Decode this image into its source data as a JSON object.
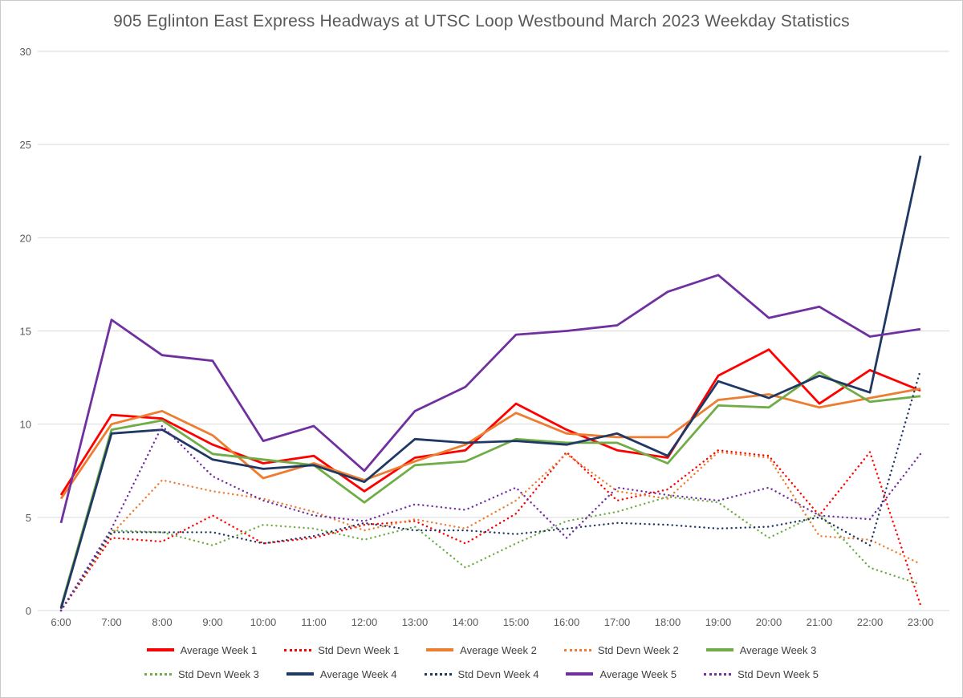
{
  "chart_data": {
    "type": "line",
    "title": "905 Eglinton East Express Headways at UTSC Loop Westbound March 2023 Weekday Statistics",
    "xlabel": "",
    "ylabel": "",
    "ylim": [
      0,
      30
    ],
    "yticks": [
      0,
      5,
      10,
      15,
      20,
      25,
      30
    ],
    "grid": "horizontal",
    "legend_position": "bottom",
    "x_labels": [
      "6:00",
      "7:00",
      "8:00",
      "9:00",
      "10:00",
      "11:00",
      "12:00",
      "13:00",
      "14:00",
      "15:00",
      "16:00",
      "17:00",
      "18:00",
      "19:00",
      "20:00",
      "21:00",
      "22:00",
      "23:00"
    ],
    "series": [
      {
        "name": "Average Week 1",
        "color": "#FF0000",
        "style": "solid",
        "values": [
          6.2,
          10.5,
          10.3,
          8.9,
          7.9,
          8.3,
          6.4,
          8.2,
          8.6,
          11.1,
          9.7,
          8.6,
          8.2,
          12.6,
          14.0,
          11.1,
          12.9,
          11.8
        ]
      },
      {
        "name": "Std Devn Week 1",
        "color": "#FF0000",
        "style": "dotted",
        "values": [
          0,
          3.9,
          3.7,
          5.1,
          3.6,
          3.9,
          4.6,
          4.8,
          3.6,
          5.2,
          8.5,
          5.9,
          6.5,
          8.6,
          8.3,
          5.1,
          8.5,
          0.3
        ]
      },
      {
        "name": "Average Week 2",
        "color": "#ED7D31",
        "style": "solid",
        "values": [
          6.0,
          10.0,
          10.7,
          9.4,
          7.1,
          7.9,
          7.0,
          8.0,
          8.9,
          10.6,
          9.5,
          9.3,
          9.3,
          11.3,
          11.6,
          10.9,
          11.4,
          11.9
        ]
      },
      {
        "name": "Std Devn Week 2",
        "color": "#ED7D31",
        "style": "dotted",
        "values": [
          0,
          4.1,
          7.0,
          6.4,
          6.0,
          5.3,
          4.3,
          4.9,
          4.4,
          5.9,
          8.4,
          6.4,
          6.0,
          8.5,
          8.2,
          4.0,
          3.8,
          2.5
        ]
      },
      {
        "name": "Average Week 3",
        "color": "#70AD47",
        "style": "solid",
        "values": [
          0.2,
          9.7,
          10.2,
          8.4,
          8.1,
          7.8,
          5.8,
          7.8,
          8.0,
          9.2,
          9.0,
          9.0,
          7.9,
          11.0,
          10.9,
          12.8,
          11.2,
          11.5
        ]
      },
      {
        "name": "Std Devn Week 3",
        "color": "#70AD47",
        "style": "dotted",
        "values": [
          0,
          4.3,
          4.2,
          3.5,
          4.6,
          4.4,
          3.8,
          4.5,
          2.3,
          3.6,
          4.8,
          5.3,
          6.1,
          5.8,
          3.9,
          5.2,
          2.3,
          1.4
        ]
      },
      {
        "name": "Average Week 4",
        "color": "#1F3864",
        "style": "solid",
        "values": [
          0.1,
          9.5,
          9.7,
          8.1,
          7.6,
          7.8,
          6.9,
          9.2,
          9.0,
          9.1,
          8.9,
          9.5,
          8.3,
          12.3,
          11.4,
          12.6,
          11.7,
          24.4
        ]
      },
      {
        "name": "Std Devn Week 4",
        "color": "#1F3864",
        "style": "dotted",
        "values": [
          0,
          4.2,
          4.2,
          4.2,
          3.6,
          4.0,
          4.7,
          4.3,
          4.3,
          4.1,
          4.4,
          4.7,
          4.6,
          4.4,
          4.5,
          5.0,
          3.5,
          12.9
        ]
      },
      {
        "name": "Average Week 5",
        "color": "#7030A0",
        "style": "solid",
        "values": [
          4.7,
          15.6,
          13.7,
          13.4,
          9.1,
          9.9,
          7.5,
          10.7,
          12.0,
          14.8,
          15.0,
          15.3,
          17.1,
          18.0,
          15.7,
          16.3,
          14.7,
          15.1
        ]
      },
      {
        "name": "Std Devn Week 5",
        "color": "#7030A0",
        "style": "dotted",
        "values": [
          0,
          4.4,
          9.9,
          7.2,
          5.9,
          5.1,
          4.8,
          5.7,
          5.4,
          6.6,
          3.9,
          6.6,
          6.2,
          5.9,
          6.6,
          5.1,
          4.9,
          8.4
        ]
      }
    ]
  }
}
